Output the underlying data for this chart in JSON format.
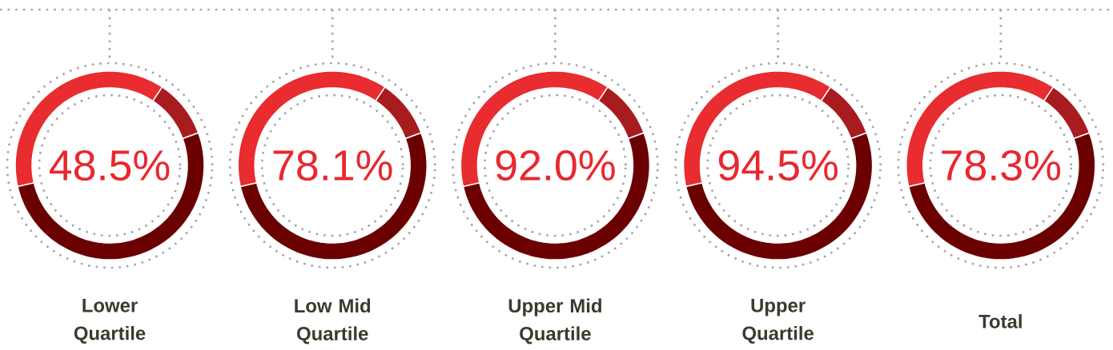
{
  "chart_data": [
    {
      "type": "donut",
      "title": "Lower Quartile",
      "categories": [
        null,
        null,
        null
      ],
      "values": [
        38,
        10,
        52
      ],
      "colors": [
        "#e82c2f",
        "#a81c1f",
        "#6b0000"
      ],
      "annotations": [
        "48.5%"
      ]
    },
    {
      "type": "donut",
      "title": "Low Mid Quartile",
      "categories": [
        null,
        null,
        null
      ],
      "values": [
        38,
        10,
        52
      ],
      "colors": [
        "#e82c2f",
        "#a81c1f",
        "#6b0000"
      ],
      "annotations": [
        "78.1%"
      ]
    },
    {
      "type": "donut",
      "title": "Upper Mid Quartile",
      "categories": [
        null,
        null,
        null
      ],
      "values": [
        38,
        10,
        52
      ],
      "colors": [
        "#e82c2f",
        "#a81c1f",
        "#6b0000"
      ],
      "annotations": [
        "92.0%"
      ]
    },
    {
      "type": "donut",
      "title": "Upper Quartile",
      "categories": [
        null,
        null,
        null
      ],
      "values": [
        38,
        10,
        52
      ],
      "colors": [
        "#e82c2f",
        "#a81c1f",
        "#6b0000"
      ],
      "annotations": [
        "94.5%"
      ]
    },
    {
      "type": "donut",
      "title": "Total",
      "categories": [
        null,
        null,
        null
      ],
      "values": [
        38,
        10,
        52
      ],
      "colors": [
        "#e82c2f",
        "#a81c1f",
        "#6b0000"
      ],
      "annotations": [
        "78.3%"
      ]
    }
  ]
}
